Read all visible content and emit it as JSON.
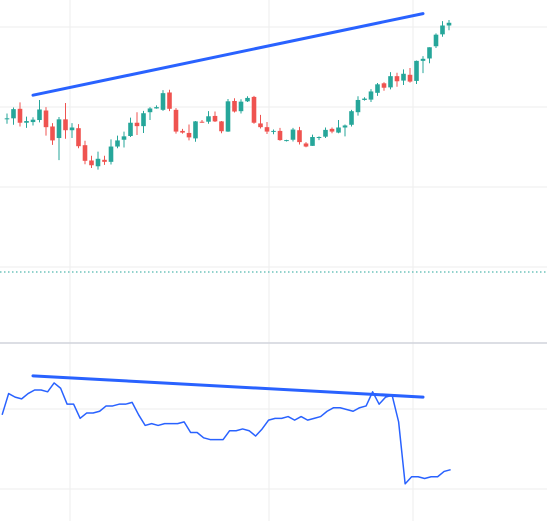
{
  "chart_data": [
    {
      "type": "candlestick",
      "panel": "price",
      "grid": true,
      "legend": "none",
      "ylim": [
        0,
        100
      ],
      "colors": {
        "up": "#26a69a",
        "down": "#ef5350",
        "trendline": "#2962ff",
        "grid": "#eeeeee",
        "baseline": "#26a69a"
      },
      "baseline_value": 20,
      "trendline": {
        "from": {
          "index": 4,
          "value": 72
        },
        "to": {
          "index": 64,
          "value": 96
        }
      },
      "candles": [
        {
          "o": 65.0,
          "h": 66.6,
          "l": 63.6,
          "c": 65.2
        },
        {
          "o": 65.2,
          "h": 68.4,
          "l": 63.3,
          "c": 67.9
        },
        {
          "o": 68.0,
          "h": 69.9,
          "l": 62.8,
          "c": 63.9
        },
        {
          "o": 63.9,
          "h": 65.7,
          "l": 62.4,
          "c": 64.4
        },
        {
          "o": 64.1,
          "h": 65.5,
          "l": 63.1,
          "c": 64.8
        },
        {
          "o": 64.7,
          "h": 70.6,
          "l": 64.0,
          "c": 67.8
        },
        {
          "o": 67.5,
          "h": 68.5,
          "l": 60.1,
          "c": 62.6
        },
        {
          "o": 62.8,
          "h": 63.8,
          "l": 57.4,
          "c": 58.7
        },
        {
          "o": 59.4,
          "h": 65.6,
          "l": 52.9,
          "c": 64.9
        },
        {
          "o": 64.9,
          "h": 69.7,
          "l": 59.2,
          "c": 61.7
        },
        {
          "o": 61.7,
          "h": 63.8,
          "l": 59.4,
          "c": 62.5
        },
        {
          "o": 62.3,
          "h": 63.5,
          "l": 56.4,
          "c": 57.0
        },
        {
          "o": 57.3,
          "h": 58.6,
          "l": 51.7,
          "c": 52.7
        },
        {
          "o": 52.8,
          "h": 54.2,
          "l": 50.6,
          "c": 51.4
        },
        {
          "o": 51.1,
          "h": 55.4,
          "l": 50.1,
          "c": 53.3
        },
        {
          "o": 53.0,
          "h": 54.2,
          "l": 51.5,
          "c": 52.4
        },
        {
          "o": 52.4,
          "h": 59.0,
          "l": 51.6,
          "c": 56.9
        },
        {
          "o": 56.9,
          "h": 60.1,
          "l": 56.4,
          "c": 58.7
        },
        {
          "o": 58.9,
          "h": 61.3,
          "l": 56.6,
          "c": 59.9
        },
        {
          "o": 60.0,
          "h": 65.4,
          "l": 59.7,
          "c": 63.9
        },
        {
          "o": 63.9,
          "h": 67.0,
          "l": 60.3,
          "c": 62.9
        },
        {
          "o": 62.9,
          "h": 67.4,
          "l": 60.9,
          "c": 66.7
        },
        {
          "o": 67.0,
          "h": 68.5,
          "l": 64.7,
          "c": 68.1
        },
        {
          "o": 68.1,
          "h": 69.0,
          "l": 68.0,
          "c": 68.5
        },
        {
          "o": 67.7,
          "h": 73.5,
          "l": 67.4,
          "c": 72.6
        },
        {
          "o": 72.8,
          "h": 73.6,
          "l": 67.3,
          "c": 68.0
        },
        {
          "o": 67.7,
          "h": 68.2,
          "l": 60.7,
          "c": 61.3
        },
        {
          "o": 61.5,
          "h": 62.1,
          "l": 60.7,
          "c": 61.0
        },
        {
          "o": 60.9,
          "h": 63.4,
          "l": 58.7,
          "c": 59.6
        },
        {
          "o": 59.3,
          "h": 64.4,
          "l": 58.3,
          "c": 64.3
        },
        {
          "o": 64.2,
          "h": 64.7,
          "l": 63.9,
          "c": 64.0
        },
        {
          "o": 64.2,
          "h": 67.3,
          "l": 63.6,
          "c": 65.8
        },
        {
          "o": 65.9,
          "h": 67.2,
          "l": 64.1,
          "c": 64.3
        },
        {
          "o": 64.3,
          "h": 64.4,
          "l": 60.8,
          "c": 61.4
        },
        {
          "o": 61.3,
          "h": 70.9,
          "l": 61.2,
          "c": 70.2
        },
        {
          "o": 70.3,
          "h": 71.1,
          "l": 66.9,
          "c": 67.2
        },
        {
          "o": 67.3,
          "h": 70.8,
          "l": 66.6,
          "c": 70.1
        },
        {
          "o": 70.2,
          "h": 71.7,
          "l": 70.0,
          "c": 71.2
        },
        {
          "o": 71.5,
          "h": 71.8,
          "l": 63.6,
          "c": 63.9
        },
        {
          "o": 63.7,
          "h": 66.2,
          "l": 62.2,
          "c": 62.6
        },
        {
          "o": 62.6,
          "h": 64.1,
          "l": 60.6,
          "c": 61.3
        },
        {
          "o": 61.3,
          "h": 61.9,
          "l": 60.5,
          "c": 61.5
        },
        {
          "o": 61.5,
          "h": 62.4,
          "l": 58.6,
          "c": 58.8
        },
        {
          "o": 58.7,
          "h": 58.9,
          "l": 58.4,
          "c": 58.8
        },
        {
          "o": 58.9,
          "h": 62.4,
          "l": 58.4,
          "c": 61.9
        },
        {
          "o": 61.7,
          "h": 62.7,
          "l": 57.5,
          "c": 58.2
        },
        {
          "o": 57.8,
          "h": 58.2,
          "l": 56.7,
          "c": 56.9
        },
        {
          "o": 57.1,
          "h": 60.4,
          "l": 57.1,
          "c": 59.7
        },
        {
          "o": 59.6,
          "h": 59.9,
          "l": 58.8,
          "c": 59.7
        },
        {
          "o": 59.8,
          "h": 62.5,
          "l": 59.4,
          "c": 61.8
        },
        {
          "o": 62.1,
          "h": 62.5,
          "l": 60.8,
          "c": 61.3
        },
        {
          "o": 61.0,
          "h": 64.7,
          "l": 60.8,
          "c": 62.5
        },
        {
          "o": 62.5,
          "h": 63.4,
          "l": 59.9,
          "c": 63.1
        },
        {
          "o": 63.3,
          "h": 67.7,
          "l": 62.8,
          "c": 67.3
        },
        {
          "o": 67.0,
          "h": 71.7,
          "l": 66.0,
          "c": 70.6
        },
        {
          "o": 70.6,
          "h": 71.4,
          "l": 70.4,
          "c": 71.0
        },
        {
          "o": 70.7,
          "h": 73.8,
          "l": 70.0,
          "c": 73.1
        },
        {
          "o": 72.7,
          "h": 75.6,
          "l": 71.8,
          "c": 75.2
        },
        {
          "o": 75.5,
          "h": 75.8,
          "l": 73.3,
          "c": 74.2
        },
        {
          "o": 74.3,
          "h": 78.8,
          "l": 73.7,
          "c": 77.6
        },
        {
          "o": 77.6,
          "h": 78.6,
          "l": 74.5,
          "c": 76.1
        },
        {
          "o": 76.3,
          "h": 79.6,
          "l": 75.0,
          "c": 78.3
        },
        {
          "o": 78.0,
          "h": 80.0,
          "l": 75.7,
          "c": 76.0
        },
        {
          "o": 76.2,
          "h": 82.2,
          "l": 75.3,
          "c": 82.1
        },
        {
          "o": 82.1,
          "h": 83.5,
          "l": 78.5,
          "c": 82.7
        },
        {
          "o": 82.8,
          "h": 86.1,
          "l": 81.4,
          "c": 86.1
        },
        {
          "o": 86.4,
          "h": 90.2,
          "l": 85.9,
          "c": 89.8
        },
        {
          "o": 89.9,
          "h": 93.8,
          "l": 89.2,
          "c": 92.5
        },
        {
          "o": 92.5,
          "h": 94.1,
          "l": 91.1,
          "c": 93.3
        }
      ]
    },
    {
      "type": "line",
      "panel": "indicator",
      "grid": true,
      "legend": "none",
      "ylim": [
        0,
        100
      ],
      "colors": {
        "line": "#2962ff",
        "trendline": "#2962ff"
      },
      "trendline": {
        "from": {
          "index": 4,
          "value": 82
        },
        "to": {
          "index": 64,
          "value": 70
        }
      },
      "values": [
        60,
        72,
        70,
        69,
        72,
        74,
        74,
        73,
        78,
        75,
        66,
        66,
        58,
        61,
        61,
        62,
        65,
        65,
        66,
        66,
        67,
        60,
        54,
        55,
        54,
        55,
        55,
        55,
        56,
        50,
        50,
        47,
        46,
        46,
        46,
        51,
        51,
        52,
        51,
        48,
        52,
        57,
        58,
        58,
        59,
        57,
        59,
        57,
        58,
        59,
        62,
        64,
        64,
        63,
        62,
        64,
        65,
        73,
        66,
        70,
        71,
        56,
        21,
        25,
        25,
        24,
        25,
        25,
        28,
        29
      ]
    }
  ]
}
